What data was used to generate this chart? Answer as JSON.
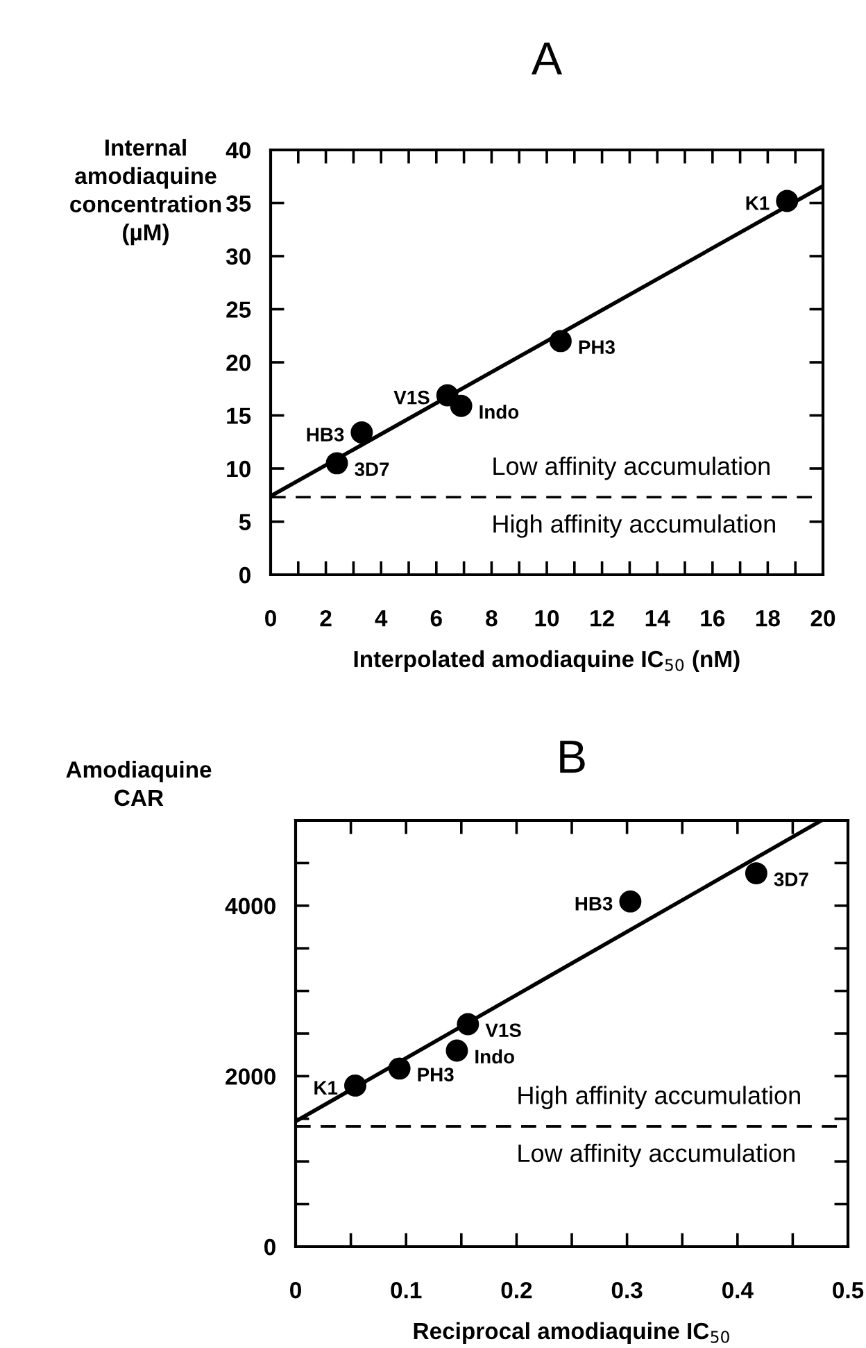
{
  "chart_data": [
    {
      "type": "scatter",
      "title": "A",
      "xlabel": "Interpolated amodiaquine IC$_{50}$ (nM)",
      "ylabel": "Internal\namodiaquine\nconcentration\n(µM)",
      "x": [
        2.4,
        3.3,
        6.4,
        6.9,
        10.5,
        18.7
      ],
      "series": [
        {
          "color": "#000000",
          "marker": "circle",
          "values": [
            10.5,
            13.4,
            16.9,
            15.9,
            22.0,
            35.2
          ]
        },
        {
          "type": "line",
          "color": "#000000",
          "x": [
            0,
            20
          ],
          "values": [
            7.4,
            36.6
          ]
        }
      ],
      "ref_lines": [
        {
          "axis": "y",
          "value": 7.3,
          "line_style": "dashed",
          "color": "#000000"
        }
      ],
      "annotations": [
        {
          "text": "3D7",
          "x": 2.4,
          "y": 10.5
        },
        {
          "text": "HB3",
          "x": 3.3,
          "y": 13.4
        },
        {
          "text": "V1S",
          "x": 6.4,
          "y": 16.9
        },
        {
          "text": "Indo",
          "x": 6.9,
          "y": 15.9
        },
        {
          "text": "PH3",
          "x": 10.5,
          "y": 22.0
        },
        {
          "text": "K1",
          "x": 18.7,
          "y": 35.2
        },
        "Low affinity accumulation",
        "High affinity accumulation"
      ],
      "xlim": [
        0,
        20
      ],
      "ylim": [
        0,
        40
      ],
      "xticks": [
        0,
        {
          "value": 1,
          "label": null
        },
        2,
        {
          "value": 3,
          "label": null
        },
        4,
        {
          "value": 5,
          "label": null
        },
        6,
        {
          "value": 7,
          "label": null
        },
        8,
        {
          "value": 9,
          "label": null
        },
        10,
        {
          "value": 11,
          "label": null
        },
        12,
        {
          "value": 13,
          "label": null
        },
        14,
        {
          "value": 15,
          "label": null
        },
        16,
        {
          "value": 17,
          "label": null
        },
        18,
        {
          "value": 19,
          "label": null
        },
        20
      ],
      "yticks": [
        0,
        5,
        10,
        15,
        20,
        25,
        30,
        35,
        40
      ],
      "grid": false,
      "legend": false
    },
    {
      "type": "scatter",
      "title": "B",
      "xlabel": "Reciprocal amodiaquine IC$_{50}$",
      "ylabel": "Amodiaquine\nCAR",
      "x": [
        0.054,
        0.094,
        0.146,
        0.156,
        0.303,
        0.417
      ],
      "series": [
        {
          "color": "#000000",
          "marker": "circle",
          "values": [
            1890,
            2090,
            2300,
            2610,
            4050,
            4380
          ]
        },
        {
          "type": "line",
          "color": "#000000",
          "x": [
            0,
            0.476
          ],
          "values": [
            1470,
            5000
          ]
        }
      ],
      "ref_lines": [
        {
          "axis": "y",
          "value": 1410,
          "line_style": "dashed",
          "color": "#000000"
        }
      ],
      "annotations": [
        {
          "text": "K1",
          "x": 0.054,
          "y": 1890
        },
        {
          "text": "PH3",
          "x": 0.094,
          "y": 2090
        },
        {
          "text": "Indo",
          "x": 0.146,
          "y": 2300
        },
        {
          "text": "V1S",
          "x": 0.156,
          "y": 2610
        },
        {
          "text": "HB3",
          "x": 0.303,
          "y": 4050
        },
        {
          "text": "3D7",
          "x": 0.417,
          "y": 4380
        },
        "High affinity accumulation",
        "Low affinity accumulation"
      ],
      "xlim": [
        0,
        0.5
      ],
      "ylim": [
        0,
        5000
      ],
      "xticks": [
        0,
        {
          "value": 0.05,
          "label": null
        },
        0.1,
        {
          "value": 0.15,
          "label": null
        },
        0.2,
        {
          "value": 0.25,
          "label": null
        },
        0.3,
        {
          "value": 0.35,
          "label": null
        },
        0.4,
        {
          "value": 0.45,
          "label": null
        },
        0.5
      ],
      "yticks": [
        0,
        {
          "value": 500,
          "label": null
        },
        {
          "value": 1000,
          "label": null
        },
        {
          "value": 1500,
          "label": null
        },
        2000,
        {
          "value": 2500,
          "label": null
        },
        {
          "value": 3000,
          "label": null
        },
        {
          "value": 3500,
          "label": null
        },
        4000,
        {
          "value": 4500,
          "label": null
        },
        {
          "value": 5000,
          "label": null
        }
      ],
      "grid": false,
      "legend": false
    }
  ]
}
